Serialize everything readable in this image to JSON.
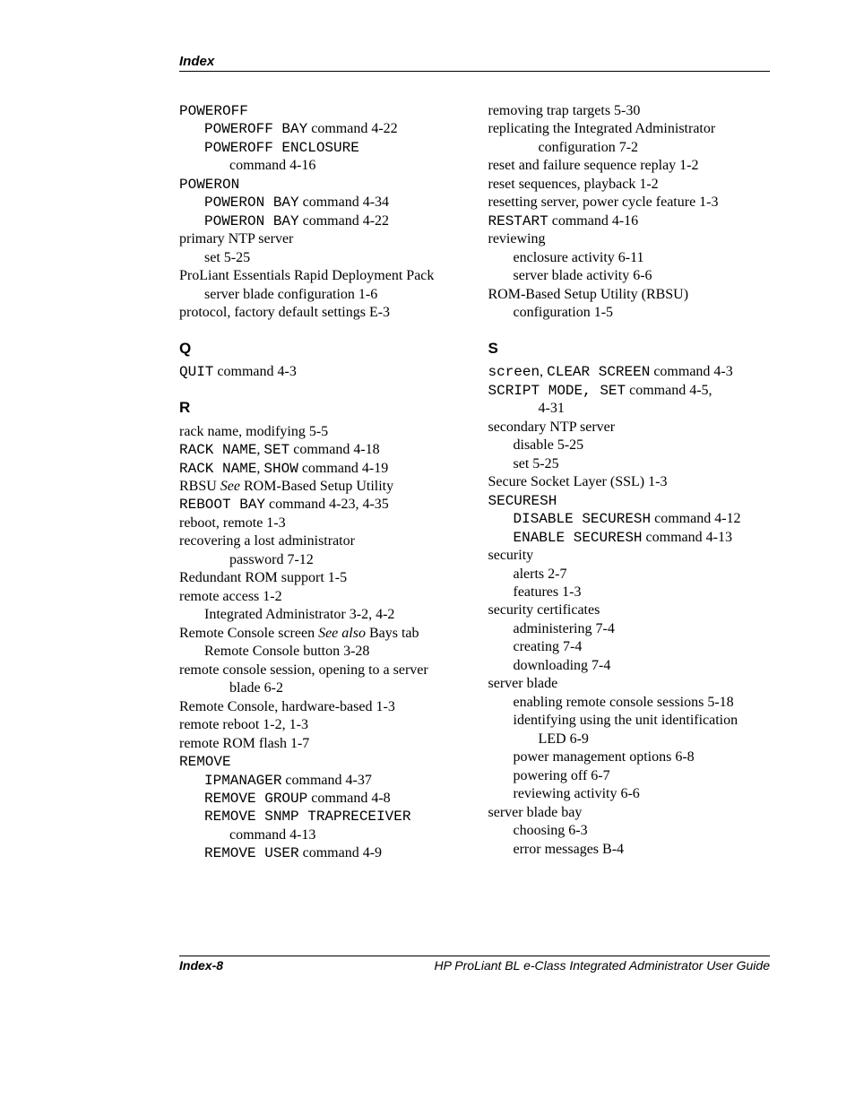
{
  "header": "Index",
  "footer": {
    "left": "Index-8",
    "right": "HP ProLiant BL e-Class Integrated Administrator User Guide"
  },
  "left_col": [
    {
      "type": "entry",
      "level": 0,
      "segments": [
        {
          "style": "mono",
          "text": "POWEROFF"
        }
      ]
    },
    {
      "type": "entry",
      "level": 1,
      "segments": [
        {
          "style": "mono",
          "text": "POWEROFF BAY"
        },
        {
          "text": " command   4-22"
        }
      ]
    },
    {
      "type": "entry",
      "level": 1,
      "segments": [
        {
          "style": "mono",
          "text": "POWEROFF ENCLOSURE"
        }
      ]
    },
    {
      "type": "entry",
      "level": 2,
      "segments": [
        {
          "text": "command   4-16"
        }
      ]
    },
    {
      "type": "entry",
      "level": 0,
      "segments": [
        {
          "style": "mono",
          "text": "POWERON"
        }
      ]
    },
    {
      "type": "entry",
      "level": 1,
      "segments": [
        {
          "style": "mono",
          "text": "POWERON BAY"
        },
        {
          "text": " command   4-34"
        }
      ]
    },
    {
      "type": "entry",
      "level": 1,
      "segments": [
        {
          "style": "mono",
          "text": "POWERON BAY"
        },
        {
          "text": " command   4-22"
        }
      ]
    },
    {
      "type": "entry",
      "level": 0,
      "segments": [
        {
          "text": "primary NTP server"
        }
      ]
    },
    {
      "type": "entry",
      "level": 1,
      "segments": [
        {
          "text": "set   5-25"
        }
      ]
    },
    {
      "type": "entry",
      "level": 0,
      "segments": [
        {
          "text": "ProLiant Essentials Rapid Deployment Pack"
        }
      ]
    },
    {
      "type": "entry",
      "level": 1,
      "segments": [
        {
          "text": "server blade configuration   1-6"
        }
      ]
    },
    {
      "type": "entry",
      "level": 0,
      "segments": [
        {
          "text": "protocol, factory default settings   E-3"
        }
      ]
    },
    {
      "type": "head",
      "text": "Q"
    },
    {
      "type": "entry",
      "level": 0,
      "segments": [
        {
          "style": "mono",
          "text": "QUIT"
        },
        {
          "text": " command   4-3"
        }
      ]
    },
    {
      "type": "head",
      "text": "R"
    },
    {
      "type": "entry",
      "level": 0,
      "segments": [
        {
          "text": "rack name, modifying   5-5"
        }
      ]
    },
    {
      "type": "entry",
      "level": 0,
      "segments": [
        {
          "style": "mono",
          "text": "RACK NAME"
        },
        {
          "text": ", "
        },
        {
          "style": "mono",
          "text": "SET"
        },
        {
          "text": " command   4-18"
        }
      ]
    },
    {
      "type": "entry",
      "level": 0,
      "segments": [
        {
          "style": "mono",
          "text": "RACK NAME"
        },
        {
          "text": ", "
        },
        {
          "style": "mono",
          "text": "SHOW"
        },
        {
          "text": " command   4-19"
        }
      ]
    },
    {
      "type": "entry",
      "level": 0,
      "segments": [
        {
          "text": "RBSU   "
        },
        {
          "style": "ital",
          "text": "See"
        },
        {
          "text": " ROM-Based Setup Utility"
        }
      ]
    },
    {
      "type": "entry",
      "level": 0,
      "segments": [
        {
          "style": "mono",
          "text": "REBOOT BAY"
        },
        {
          "text": " command   4-23, 4-35"
        }
      ]
    },
    {
      "type": "entry",
      "level": 0,
      "segments": [
        {
          "text": "reboot, remote   1-3"
        }
      ]
    },
    {
      "type": "entry",
      "level": 0,
      "segments": [
        {
          "text": "recovering a lost administrator"
        }
      ]
    },
    {
      "type": "entry",
      "level": 2,
      "segments": [
        {
          "text": "password   7-12"
        }
      ]
    },
    {
      "type": "entry",
      "level": 0,
      "segments": [
        {
          "text": "Redundant ROM support   1-5"
        }
      ]
    },
    {
      "type": "entry",
      "level": 0,
      "segments": [
        {
          "text": "remote access   1-2"
        }
      ]
    },
    {
      "type": "entry",
      "level": 1,
      "segments": [
        {
          "text": "Integrated Administrator   3-2, 4-2"
        }
      ]
    },
    {
      "type": "entry",
      "level": 0,
      "segments": [
        {
          "text": "Remote Console screen   "
        },
        {
          "style": "ital",
          "text": "See also"
        },
        {
          "text": " Bays tab"
        }
      ]
    },
    {
      "type": "entry",
      "level": 1,
      "segments": [
        {
          "text": "Remote Console button   3-28"
        }
      ]
    },
    {
      "type": "entry",
      "level": 0,
      "segments": [
        {
          "text": "remote console session, opening to a server"
        }
      ]
    },
    {
      "type": "entry",
      "level": 2,
      "segments": [
        {
          "text": "blade   6-2"
        }
      ]
    },
    {
      "type": "entry",
      "level": 0,
      "segments": [
        {
          "text": "Remote Console, hardware-based   1-3"
        }
      ]
    },
    {
      "type": "entry",
      "level": 0,
      "segments": [
        {
          "text": "remote reboot   1-2, 1-3"
        }
      ]
    },
    {
      "type": "entry",
      "level": 0,
      "segments": [
        {
          "text": "remote ROM flash   1-7"
        }
      ]
    },
    {
      "type": "entry",
      "level": 0,
      "segments": [
        {
          "style": "mono",
          "text": "REMOVE"
        }
      ]
    },
    {
      "type": "entry",
      "level": 1,
      "segments": [
        {
          "style": "mono",
          "text": "IPMANAGER"
        },
        {
          "text": " command   4-37"
        }
      ]
    },
    {
      "type": "entry",
      "level": 1,
      "segments": [
        {
          "style": "mono",
          "text": "REMOVE GROUP"
        },
        {
          "text": " command   4-8"
        }
      ]
    },
    {
      "type": "entry",
      "level": 1,
      "segments": [
        {
          "style": "mono",
          "text": "REMOVE SNMP TRAPRECEIVER"
        }
      ]
    },
    {
      "type": "entry",
      "level": 2,
      "segments": [
        {
          "text": "command   4-13"
        }
      ]
    },
    {
      "type": "entry",
      "level": 1,
      "segments": [
        {
          "style": "mono",
          "text": "REMOVE USER"
        },
        {
          "text": " command   4-9"
        }
      ]
    }
  ],
  "right_col": [
    {
      "type": "entry",
      "level": 0,
      "segments": [
        {
          "text": "removing trap targets   5-30"
        }
      ]
    },
    {
      "type": "entry",
      "level": 0,
      "segments": [
        {
          "text": "replicating the Integrated Administrator"
        }
      ]
    },
    {
      "type": "entry",
      "level": 2,
      "segments": [
        {
          "text": "configuration   7-2"
        }
      ]
    },
    {
      "type": "entry",
      "level": 0,
      "segments": [
        {
          "text": "reset and failure sequence replay   1-2"
        }
      ]
    },
    {
      "type": "entry",
      "level": 0,
      "segments": [
        {
          "text": "reset sequences, playback   1-2"
        }
      ]
    },
    {
      "type": "entry",
      "level": 0,
      "segments": [
        {
          "text": "resetting server, power cycle feature   1-3"
        }
      ]
    },
    {
      "type": "entry",
      "level": 0,
      "segments": [
        {
          "style": "mono",
          "text": "RESTART"
        },
        {
          "text": " command   4-16"
        }
      ]
    },
    {
      "type": "entry",
      "level": 0,
      "segments": [
        {
          "text": "reviewing"
        }
      ]
    },
    {
      "type": "entry",
      "level": 1,
      "segments": [
        {
          "text": "enclosure activity   6-11"
        }
      ]
    },
    {
      "type": "entry",
      "level": 1,
      "segments": [
        {
          "text": "server blade activity   6-6"
        }
      ]
    },
    {
      "type": "entry",
      "level": 0,
      "segments": [
        {
          "text": "ROM-Based Setup Utility (RBSU)"
        }
      ]
    },
    {
      "type": "entry",
      "level": 1,
      "segments": [
        {
          "text": "configuration   1-5"
        }
      ]
    },
    {
      "type": "head",
      "text": "S"
    },
    {
      "type": "entry",
      "level": 0,
      "segments": [
        {
          "style": "mono",
          "text": "screen"
        },
        {
          "text": ", "
        },
        {
          "style": "mono",
          "text": "CLEAR SCREEN"
        },
        {
          "text": " command   4-3"
        }
      ]
    },
    {
      "type": "entry",
      "level": 0,
      "segments": [
        {
          "style": "mono",
          "text": "SCRIPT MODE, SET"
        },
        {
          "text": " command   4-5,"
        }
      ]
    },
    {
      "type": "entry",
      "level": 2,
      "segments": [
        {
          "text": "4-31"
        }
      ]
    },
    {
      "type": "entry",
      "level": 0,
      "segments": [
        {
          "text": "secondary NTP server"
        }
      ]
    },
    {
      "type": "entry",
      "level": 1,
      "segments": [
        {
          "text": "disable   5-25"
        }
      ]
    },
    {
      "type": "entry",
      "level": 1,
      "segments": [
        {
          "text": "set   5-25"
        }
      ]
    },
    {
      "type": "entry",
      "level": 0,
      "segments": [
        {
          "text": "Secure Socket Layer (SSL)   1-3"
        }
      ]
    },
    {
      "type": "entry",
      "level": 0,
      "segments": [
        {
          "style": "mono",
          "text": "SECURESH"
        }
      ]
    },
    {
      "type": "entry",
      "level": 1,
      "segments": [
        {
          "style": "mono",
          "text": "DISABLE SECURESH"
        },
        {
          "text": " command   4-12"
        }
      ]
    },
    {
      "type": "entry",
      "level": 1,
      "segments": [
        {
          "style": "mono",
          "text": "ENABLE SECURESH"
        },
        {
          "text": " command   4-13"
        }
      ]
    },
    {
      "type": "entry",
      "level": 0,
      "segments": [
        {
          "text": "security"
        }
      ]
    },
    {
      "type": "entry",
      "level": 1,
      "segments": [
        {
          "text": "alerts   2-7"
        }
      ]
    },
    {
      "type": "entry",
      "level": 1,
      "segments": [
        {
          "text": "features   1-3"
        }
      ]
    },
    {
      "type": "entry",
      "level": 0,
      "segments": [
        {
          "text": "security certificates"
        }
      ]
    },
    {
      "type": "entry",
      "level": 1,
      "segments": [
        {
          "text": "administering   7-4"
        }
      ]
    },
    {
      "type": "entry",
      "level": 1,
      "segments": [
        {
          "text": "creating   7-4"
        }
      ]
    },
    {
      "type": "entry",
      "level": 1,
      "segments": [
        {
          "text": "downloading   7-4"
        }
      ]
    },
    {
      "type": "entry",
      "level": 0,
      "segments": [
        {
          "text": "server blade"
        }
      ]
    },
    {
      "type": "entry",
      "level": 1,
      "segments": [
        {
          "text": "enabling remote console sessions   5-18"
        }
      ]
    },
    {
      "type": "entry",
      "level": 1,
      "segments": [
        {
          "text": "identifying using the unit identification"
        }
      ]
    },
    {
      "type": "entry",
      "level": 2,
      "segments": [
        {
          "text": "LED   6-9"
        }
      ]
    },
    {
      "type": "entry",
      "level": 1,
      "segments": [
        {
          "text": "power management options   6-8"
        }
      ]
    },
    {
      "type": "entry",
      "level": 1,
      "segments": [
        {
          "text": "powering off   6-7"
        }
      ]
    },
    {
      "type": "entry",
      "level": 1,
      "segments": [
        {
          "text": "reviewing activity   6-6"
        }
      ]
    },
    {
      "type": "entry",
      "level": 0,
      "segments": [
        {
          "text": "server blade bay"
        }
      ]
    },
    {
      "type": "entry",
      "level": 1,
      "segments": [
        {
          "text": "choosing   6-3"
        }
      ]
    },
    {
      "type": "entry",
      "level": 1,
      "segments": [
        {
          "text": "error messages   B-4"
        }
      ]
    }
  ]
}
